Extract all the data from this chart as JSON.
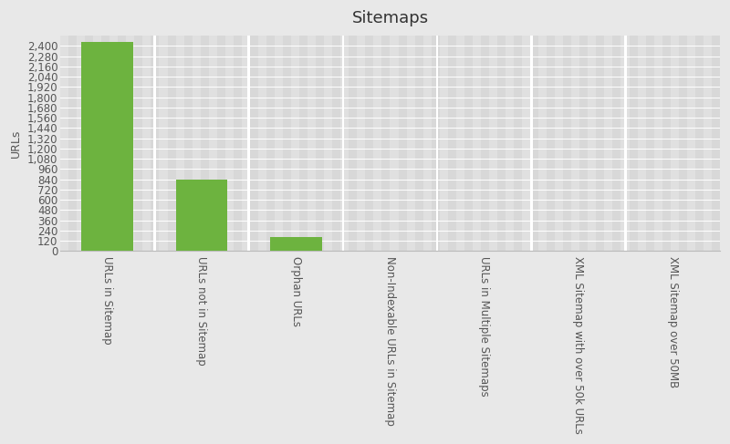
{
  "title": "Sitemaps",
  "categories": [
    "URLs in Sitemap",
    "URLs not in Sitemap",
    "Orphan URLs",
    "Non-Indexable URLs in Sitemap",
    "URLs in Multiple Sitemaps",
    "XML Sitemap with over 50k URLs",
    "XML Sitemap over 50MB"
  ],
  "values": [
    2450,
    840,
    160,
    5,
    2,
    0,
    0
  ],
  "bar_color": "#6db33f",
  "bg_color": "#e8e8e8",
  "plot_bg_color": "#d8d8d8",
  "stripe_color_a": "#d8d8d8",
  "stripe_color_b": "#e0e0e0",
  "col_sep_color": "#ffffff",
  "ylabel": "URLs",
  "title_fontsize": 13,
  "ylabel_fontsize": 9,
  "tick_fontsize": 8.5,
  "yticks": [
    0,
    120,
    240,
    360,
    480,
    600,
    720,
    840,
    960,
    1080,
    1200,
    1320,
    1440,
    1560,
    1680,
    1800,
    1920,
    2040,
    2160,
    2280,
    2400
  ],
  "ylim": [
    0,
    2520
  ],
  "bar_width": 0.55,
  "n_stripes": 80
}
